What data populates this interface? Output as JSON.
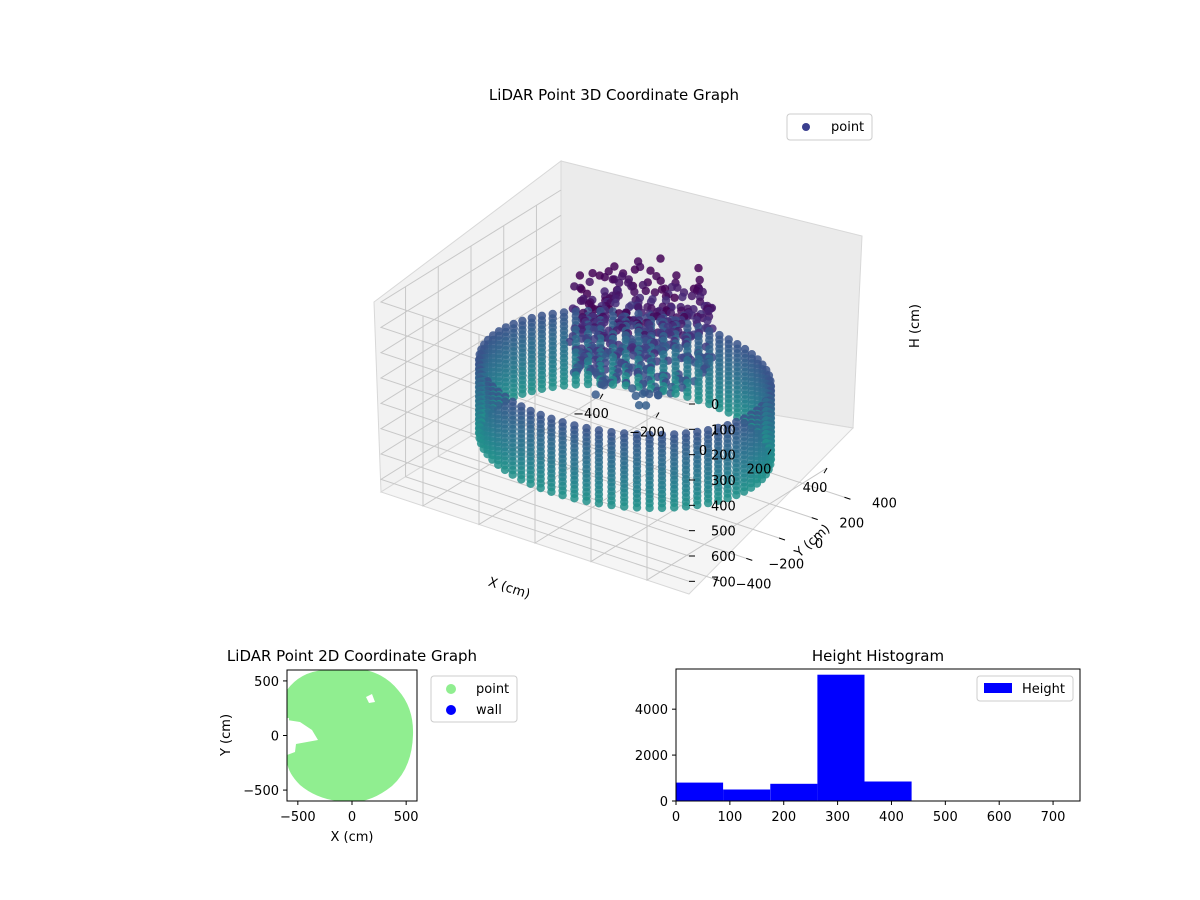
{
  "chart_data": [
    {
      "type": "scatter3d",
      "title": "LiDAR Point 3D Coordinate Graph",
      "xlabel": "X (cm)",
      "ylabel": "Y (cm)",
      "zlabel": "H (cm)",
      "xticks": [
        "−400",
        "−200",
        "0",
        "200",
        "400"
      ],
      "yticks": [
        "400",
        "200",
        "0",
        "−200",
        "−400"
      ],
      "zticks": [
        "0",
        "100",
        "200",
        "300",
        "400",
        "500",
        "600",
        "700"
      ],
      "xlim": [
        -550,
        550
      ],
      "ylim": [
        -550,
        550
      ],
      "zlim": [
        0,
        750
      ],
      "z_inverted": true,
      "legend": {
        "position": "top-right",
        "entries": [
          {
            "name": "point",
            "color": "#3b3f8f"
          }
        ]
      },
      "colormap": "viridis",
      "description_series": {
        "name": "point",
        "ring_wall": {
          "radius": 450,
          "h_range": [
            300,
            600
          ]
        },
        "cluster": {
          "x": 0,
          "y": 100,
          "h_range": [
            0,
            350
          ]
        }
      }
    },
    {
      "type": "scatter",
      "title": "LiDAR Point 2D Coordinate Graph",
      "xlabel": "X (cm)",
      "ylabel": "Y (cm)",
      "xticks": [
        "−500",
        "0",
        "500"
      ],
      "yticks": [
        "500",
        "0",
        "−500"
      ],
      "xlim": [
        -600,
        600
      ],
      "ylim": [
        -600,
        600
      ],
      "legend": {
        "position": "outside-right",
        "entries": [
          {
            "name": "point",
            "color": "#90ee90"
          },
          {
            "name": "wall",
            "color": "#0000ff"
          }
        ]
      },
      "region": {
        "center": [
          0,
          0
        ],
        "radius": 550,
        "color": "#90ee90"
      }
    },
    {
      "type": "bar",
      "title": "Height Histogram",
      "xticks": [
        "0",
        "100",
        "200",
        "300",
        "400",
        "500",
        "600",
        "700"
      ],
      "yticks": [
        "0",
        "2000",
        "4000"
      ],
      "xlim": [
        0,
        750
      ],
      "ylim": [
        0,
        5750
      ],
      "legend": {
        "position": "top-right",
        "entries": [
          {
            "name": "Height",
            "color": "#0000ff"
          }
        ]
      },
      "bins": [
        {
          "from": 0,
          "to": 87.5,
          "value": 800
        },
        {
          "from": 87.5,
          "to": 175,
          "value": 500
        },
        {
          "from": 175,
          "to": 262.5,
          "value": 750
        },
        {
          "from": 262.5,
          "to": 350,
          "value": 5500
        },
        {
          "from": 350,
          "to": 437.5,
          "value": 850
        },
        {
          "from": 437.5,
          "to": 525,
          "value": 0
        },
        {
          "from": 525,
          "to": 612.5,
          "value": 0
        },
        {
          "from": 612.5,
          "to": 700,
          "value": 0
        }
      ]
    }
  ]
}
